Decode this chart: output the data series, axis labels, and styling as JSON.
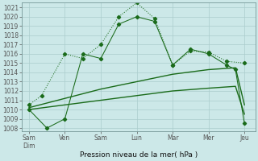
{
  "title": "Pression niveau de la mer( hPa )",
  "background_color": "#cce8e8",
  "grid_color": "#aacccc",
  "line_color": "#1a6b1a",
  "x_labels": [
    "Sam\nDim",
    "Ven",
    "Sam",
    "Lun",
    "Mar",
    "Mer",
    "Jeu"
  ],
  "x_tick_pos": [
    0,
    1,
    2,
    3,
    4,
    5,
    6
  ],
  "ylim": [
    1008,
    1021.5
  ],
  "ytick_min": 1008,
  "ytick_max": 1021,
  "series1_x": [
    0,
    0.35,
    1.0,
    1.5,
    2.0,
    2.5,
    3.0,
    3.5,
    4.0,
    4.5,
    5.0,
    5.5,
    6.0
  ],
  "series1_y": [
    1010.5,
    1011.5,
    1016.0,
    1015.5,
    1017.0,
    1020.0,
    1021.5,
    1019.8,
    1014.8,
    1016.3,
    1016.2,
    1015.2,
    1015.0
  ],
  "series1_dot": true,
  "series2_x": [
    0,
    0.5,
    1.0,
    1.5,
    2.0,
    2.5,
    3.0,
    3.5,
    4.0,
    4.5,
    5.0,
    5.5,
    5.75,
    6.0
  ],
  "series2_y": [
    1010.0,
    1008.0,
    1009.0,
    1016.0,
    1015.5,
    1019.2,
    1020.0,
    1019.5,
    1014.8,
    1016.5,
    1016.0,
    1014.8,
    1014.3,
    1008.5
  ],
  "series2_dot": false,
  "series3_x": [
    0,
    1,
    2,
    3,
    4,
    5,
    5.75,
    6.0
  ],
  "series3_y": [
    1010.2,
    1011.2,
    1012.2,
    1013.0,
    1013.8,
    1014.3,
    1014.5,
    1010.5
  ],
  "series4_x": [
    0,
    1,
    2,
    3,
    4,
    5,
    5.75,
    6.0
  ],
  "series4_y": [
    1010.0,
    1010.5,
    1011.0,
    1011.5,
    1012.0,
    1012.3,
    1012.5,
    1009.5
  ]
}
